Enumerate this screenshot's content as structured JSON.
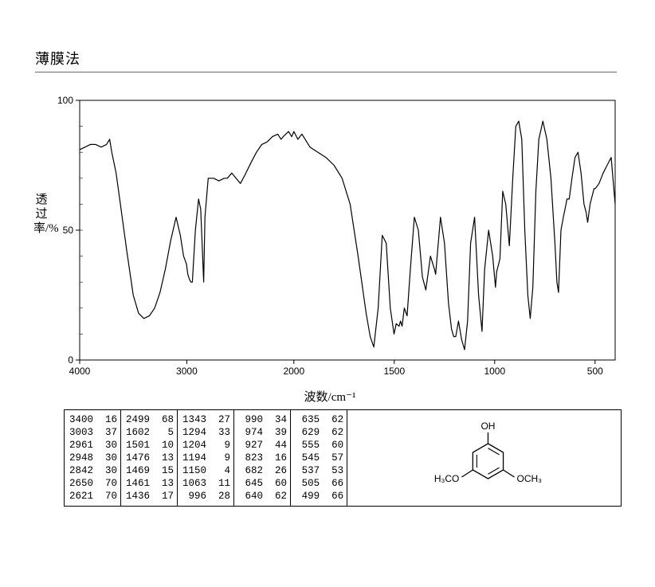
{
  "title": "薄膜法",
  "chart": {
    "type": "line",
    "xlabel": "波数/cm⁻¹",
    "ylabel": "透过率/%",
    "xlim": [
      4000,
      400
    ],
    "ylim": [
      0,
      100
    ],
    "xticks": [
      4000,
      3000,
      2000,
      1500,
      1000,
      500
    ],
    "yticks": [
      0,
      50,
      100
    ],
    "line_color": "#000000",
    "axis_color": "#000000",
    "tick_fontsize": 12,
    "label_fontsize": 15,
    "background": "#ffffff",
    "spectrum": [
      [
        4000,
        81
      ],
      [
        3950,
        82
      ],
      [
        3900,
        83
      ],
      [
        3850,
        83
      ],
      [
        3800,
        82
      ],
      [
        3750,
        83
      ],
      [
        3720,
        85
      ],
      [
        3700,
        80
      ],
      [
        3660,
        72
      ],
      [
        3620,
        60
      ],
      [
        3560,
        42
      ],
      [
        3500,
        25
      ],
      [
        3450,
        18
      ],
      [
        3400,
        16
      ],
      [
        3350,
        17
      ],
      [
        3300,
        20
      ],
      [
        3250,
        26
      ],
      [
        3200,
        35
      ],
      [
        3150,
        46
      ],
      [
        3100,
        55
      ],
      [
        3060,
        48
      ],
      [
        3030,
        40
      ],
      [
        3003,
        37
      ],
      [
        2990,
        33
      ],
      [
        2975,
        31
      ],
      [
        2961,
        30
      ],
      [
        2948,
        30
      ],
      [
        2920,
        50
      ],
      [
        2890,
        62
      ],
      [
        2870,
        58
      ],
      [
        2842,
        30
      ],
      [
        2830,
        55
      ],
      [
        2800,
        70
      ],
      [
        2750,
        70
      ],
      [
        2700,
        69
      ],
      [
        2650,
        70
      ],
      [
        2621,
        70
      ],
      [
        2580,
        72
      ],
      [
        2540,
        70
      ],
      [
        2499,
        68
      ],
      [
        2460,
        71
      ],
      [
        2400,
        76
      ],
      [
        2350,
        80
      ],
      [
        2300,
        83
      ],
      [
        2250,
        84
      ],
      [
        2200,
        86
      ],
      [
        2150,
        87
      ],
      [
        2120,
        85
      ],
      [
        2100,
        86
      ],
      [
        2050,
        88
      ],
      [
        2020,
        86
      ],
      [
        2000,
        88
      ],
      [
        1980,
        85
      ],
      [
        1960,
        87
      ],
      [
        1920,
        82
      ],
      [
        1880,
        80
      ],
      [
        1840,
        78
      ],
      [
        1800,
        75
      ],
      [
        1760,
        70
      ],
      [
        1720,
        60
      ],
      [
        1680,
        40
      ],
      [
        1640,
        18
      ],
      [
        1620,
        9
      ],
      [
        1602,
        5
      ],
      [
        1580,
        20
      ],
      [
        1560,
        48
      ],
      [
        1540,
        45
      ],
      [
        1520,
        20
      ],
      [
        1501,
        10
      ],
      [
        1490,
        14
      ],
      [
        1476,
        13
      ],
      [
        1469,
        15
      ],
      [
        1461,
        13
      ],
      [
        1450,
        20
      ],
      [
        1436,
        17
      ],
      [
        1420,
        35
      ],
      [
        1400,
        55
      ],
      [
        1380,
        50
      ],
      [
        1360,
        32
      ],
      [
        1343,
        27
      ],
      [
        1320,
        40
      ],
      [
        1300,
        35
      ],
      [
        1294,
        33
      ],
      [
        1270,
        55
      ],
      [
        1250,
        45
      ],
      [
        1230,
        22
      ],
      [
        1215,
        12
      ],
      [
        1204,
        9
      ],
      [
        1194,
        9
      ],
      [
        1180,
        15
      ],
      [
        1165,
        8
      ],
      [
        1150,
        4
      ],
      [
        1135,
        15
      ],
      [
        1120,
        45
      ],
      [
        1100,
        55
      ],
      [
        1080,
        25
      ],
      [
        1063,
        11
      ],
      [
        1050,
        35
      ],
      [
        1030,
        50
      ],
      [
        1010,
        40
      ],
      [
        996,
        28
      ],
      [
        990,
        34
      ],
      [
        980,
        37
      ],
      [
        974,
        39
      ],
      [
        960,
        65
      ],
      [
        945,
        60
      ],
      [
        927,
        44
      ],
      [
        910,
        70
      ],
      [
        895,
        90
      ],
      [
        880,
        92
      ],
      [
        865,
        85
      ],
      [
        850,
        50
      ],
      [
        835,
        25
      ],
      [
        823,
        16
      ],
      [
        810,
        28
      ],
      [
        795,
        65
      ],
      [
        780,
        85
      ],
      [
        760,
        92
      ],
      [
        740,
        85
      ],
      [
        720,
        70
      ],
      [
        700,
        45
      ],
      [
        690,
        30
      ],
      [
        682,
        26
      ],
      [
        670,
        50
      ],
      [
        658,
        55
      ],
      [
        645,
        60
      ],
      [
        640,
        62
      ],
      [
        635,
        62
      ],
      [
        629,
        62
      ],
      [
        615,
        70
      ],
      [
        600,
        78
      ],
      [
        585,
        80
      ],
      [
        570,
        72
      ],
      [
        555,
        60
      ],
      [
        545,
        57
      ],
      [
        537,
        53
      ],
      [
        525,
        60
      ],
      [
        515,
        63
      ],
      [
        505,
        66
      ],
      [
        499,
        66
      ],
      [
        480,
        68
      ],
      [
        460,
        72
      ],
      [
        440,
        75
      ],
      [
        420,
        78
      ],
      [
        400,
        60
      ]
    ]
  },
  "peak_table": {
    "font_family": "Courier New",
    "fontsize": 12.5,
    "columns": [
      [
        [
          3400,
          16
        ],
        [
          3003,
          37
        ],
        [
          2961,
          30
        ],
        [
          2948,
          30
        ],
        [
          2842,
          30
        ],
        [
          2650,
          70
        ],
        [
          2621,
          70
        ]
      ],
      [
        [
          2499,
          68
        ],
        [
          1602,
          5
        ],
        [
          1501,
          10
        ],
        [
          1476,
          13
        ],
        [
          1469,
          15
        ],
        [
          1461,
          13
        ],
        [
          1436,
          17
        ]
      ],
      [
        [
          1343,
          27
        ],
        [
          1294,
          33
        ],
        [
          1204,
          9
        ],
        [
          1194,
          9
        ],
        [
          1150,
          4
        ],
        [
          1063,
          11
        ],
        [
          996,
          28
        ]
      ],
      [
        [
          990,
          34
        ],
        [
          974,
          39
        ],
        [
          927,
          44
        ],
        [
          823,
          16
        ],
        [
          682,
          26
        ],
        [
          645,
          60
        ],
        [
          640,
          62
        ]
      ],
      [
        [
          635,
          62
        ],
        [
          629,
          62
        ],
        [
          555,
          60
        ],
        [
          545,
          57
        ],
        [
          537,
          53
        ],
        [
          505,
          66
        ],
        [
          499,
          66
        ]
      ]
    ]
  },
  "structure": {
    "labels": {
      "oh": "OH",
      "och3_l": "H₃CO",
      "och3_r": "OCH₃"
    },
    "line_color": "#000000",
    "fontsize": 12
  }
}
